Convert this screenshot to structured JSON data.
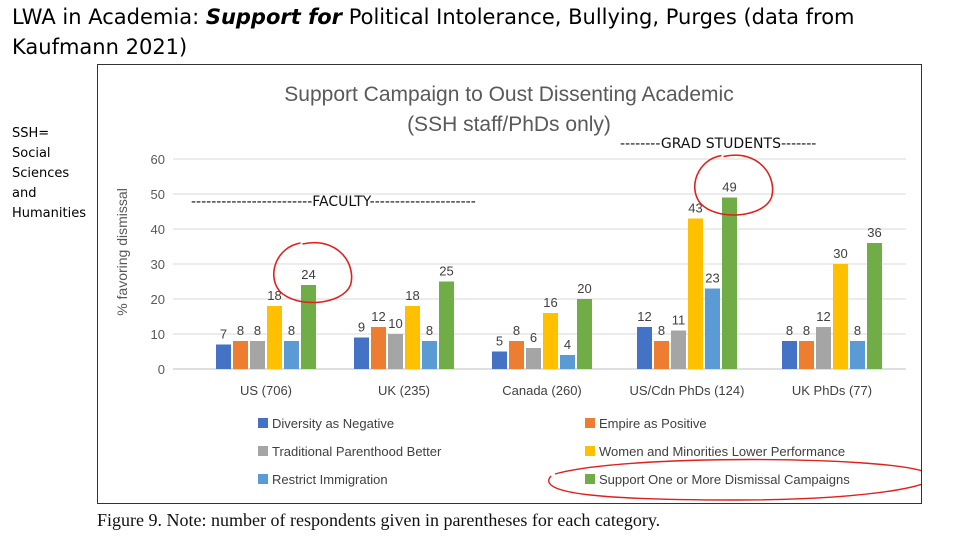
{
  "slide": {
    "title_prefix": "LWA in Academia: ",
    "title_emphasis": "Support for",
    "title_suffix": " Political Intolerance, Bullying, Purges  (data from Kaufmann 2021)",
    "side_note": [
      "SSH=",
      "Social",
      "Sciences",
      "and",
      "Humanities"
    ],
    "caption": "Figure 9. Note: number of respondents given in parentheses for each category."
  },
  "annotations": {
    "faculty": "------------------------FACULTY---------------------",
    "grad_students": "--------GRAD STUDENTS-------"
  },
  "chart_data": {
    "type": "bar",
    "title": "Support Campaign to Oust Dissenting Academic",
    "subtitle": "(SSH staff/PhDs only)",
    "ylabel": "% favoring dismissal",
    "ylim": [
      0,
      60
    ],
    "yticks": [
      0,
      10,
      20,
      30,
      40,
      50,
      60
    ],
    "grid": true,
    "legend_position": "bottom",
    "categories": [
      "US (706)",
      "UK (235)",
      "Canada (260)",
      "US/Cdn PhDs (124)",
      "UK PhDs (77)"
    ],
    "series": [
      {
        "name": "Diversity as Negative",
        "color": "#4472C4",
        "values": [
          7,
          9,
          5,
          12,
          8
        ]
      },
      {
        "name": "Empire as Positive",
        "color": "#ED7D31",
        "values": [
          8,
          12,
          8,
          8,
          8
        ]
      },
      {
        "name": "Traditional Parenthood Better",
        "color": "#A5A5A5",
        "values": [
          8,
          10,
          6,
          11,
          12
        ]
      },
      {
        "name": "Women and Minorities Lower Performance",
        "color": "#FFC000",
        "values": [
          18,
          18,
          16,
          43,
          30
        ]
      },
      {
        "name": "Restrict Immigration",
        "color": "#5B9BD5",
        "values": [
          8,
          8,
          4,
          23,
          8
        ]
      },
      {
        "name": "Support One or More Dismissal Campaigns",
        "color": "#70AD47",
        "values": [
          24,
          25,
          20,
          49,
          36
        ]
      }
    ],
    "circled": [
      {
        "series": 5,
        "category": 0
      },
      {
        "series": 5,
        "category": 3
      }
    ],
    "circled_legend_series": 5,
    "highlight_color": "#E0201B"
  }
}
